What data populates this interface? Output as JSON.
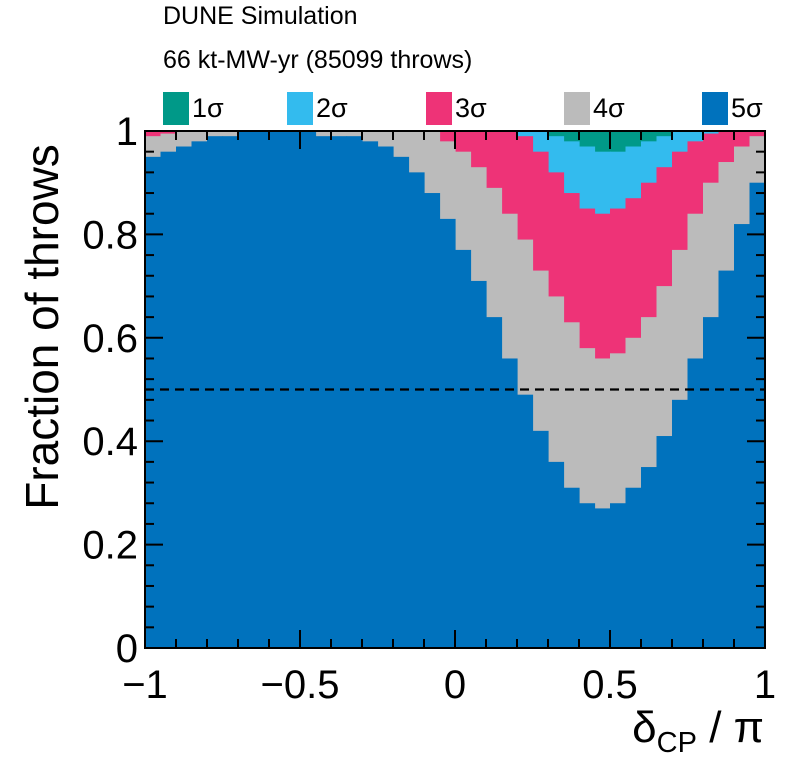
{
  "chart_data": {
    "type": "area",
    "title": "DUNE Simulation",
    "subtitle": "66 kt-MW-yr (85099 throws)",
    "xlabel": "δCP / π",
    "xlabel_main": "δ",
    "xlabel_sub": "CP",
    "xlabel_tail": " / π",
    "ylabel": "Fraction of throws",
    "xlim": [
      -1,
      1
    ],
    "ylim": [
      0,
      1
    ],
    "x_ticks": [
      "−1",
      "−0.5",
      "0",
      "0.5",
      "1"
    ],
    "x_tick_values": [
      -1,
      -0.5,
      0,
      0.5,
      1
    ],
    "y_ticks": [
      "0",
      "0.2",
      "0.4",
      "0.6",
      "0.8",
      "1"
    ],
    "y_tick_values": [
      0,
      0.2,
      0.4,
      0.6,
      0.8,
      1
    ],
    "reference_line": {
      "y": 0.5,
      "style": "dashed"
    },
    "legend_position": "top",
    "stacking": "cumulative from top",
    "bins": {
      "x_low": [
        -1.0,
        -0.95,
        -0.9,
        -0.85,
        -0.8,
        -0.75,
        -0.7,
        -0.65,
        -0.6,
        -0.55,
        -0.5,
        -0.45,
        -0.4,
        -0.35,
        -0.3,
        -0.25,
        -0.2,
        -0.15,
        -0.1,
        -0.05,
        0.0,
        0.05,
        0.1,
        0.15,
        0.2,
        0.25,
        0.3,
        0.35,
        0.4,
        0.45,
        0.5,
        0.55,
        0.6,
        0.65,
        0.7,
        0.75,
        0.8,
        0.85,
        0.9,
        0.95
      ],
      "width": 0.05
    },
    "series": [
      {
        "name": "5σ",
        "color": "#0072bd",
        "upper_bound": [
          0.95,
          0.96,
          0.97,
          0.98,
          0.99,
          0.99,
          1.0,
          1.0,
          1.0,
          1.0,
          1.0,
          0.99,
          0.99,
          0.99,
          0.98,
          0.97,
          0.95,
          0.92,
          0.88,
          0.83,
          0.77,
          0.71,
          0.64,
          0.56,
          0.49,
          0.42,
          0.36,
          0.31,
          0.28,
          0.27,
          0.28,
          0.31,
          0.35,
          0.41,
          0.48,
          0.56,
          0.64,
          0.73,
          0.82,
          0.9
        ]
      },
      {
        "name": "4σ",
        "color": "#bbbbbb",
        "upper_bound": [
          0.99,
          0.995,
          1.0,
          1.0,
          1.0,
          1.0,
          1.0,
          1.0,
          1.0,
          1.0,
          1.0,
          1.0,
          1.0,
          1.0,
          1.0,
          1.0,
          1.0,
          1.0,
          1.0,
          0.98,
          0.96,
          0.93,
          0.89,
          0.84,
          0.79,
          0.73,
          0.68,
          0.63,
          0.58,
          0.56,
          0.57,
          0.6,
          0.64,
          0.7,
          0.77,
          0.84,
          0.9,
          0.94,
          0.97,
          0.99
        ]
      },
      {
        "name": "3σ",
        "color": "#ee3377",
        "upper_bound": [
          1.0,
          1.0,
          1.0,
          1.0,
          1.0,
          1.0,
          1.0,
          1.0,
          1.0,
          1.0,
          1.0,
          1.0,
          1.0,
          1.0,
          1.0,
          1.0,
          1.0,
          1.0,
          1.0,
          1.0,
          1.0,
          1.0,
          1.0,
          1.0,
          0.99,
          0.96,
          0.92,
          0.88,
          0.85,
          0.84,
          0.85,
          0.87,
          0.9,
          0.93,
          0.96,
          0.98,
          0.995,
          1.0,
          1.0,
          1.0
        ]
      },
      {
        "name": "2σ",
        "color": "#33bbee",
        "upper_bound": [
          1.0,
          1.0,
          1.0,
          1.0,
          1.0,
          1.0,
          1.0,
          1.0,
          1.0,
          1.0,
          1.0,
          1.0,
          1.0,
          1.0,
          1.0,
          1.0,
          1.0,
          1.0,
          1.0,
          1.0,
          1.0,
          1.0,
          1.0,
          1.0,
          1.0,
          1.0,
          0.99,
          0.98,
          0.97,
          0.96,
          0.96,
          0.97,
          0.98,
          0.99,
          1.0,
          1.0,
          1.0,
          1.0,
          1.0,
          1.0
        ]
      },
      {
        "name": "1σ",
        "color": "#009988",
        "upper_bound": [
          1.0,
          1.0,
          1.0,
          1.0,
          1.0,
          1.0,
          1.0,
          1.0,
          1.0,
          1.0,
          1.0,
          1.0,
          1.0,
          1.0,
          1.0,
          1.0,
          1.0,
          1.0,
          1.0,
          1.0,
          1.0,
          1.0,
          1.0,
          1.0,
          1.0,
          1.0,
          1.0,
          1.0,
          1.0,
          1.0,
          1.0,
          1.0,
          1.0,
          1.0,
          1.0,
          1.0,
          1.0,
          1.0,
          1.0,
          1.0
        ]
      }
    ],
    "legend_order": [
      "1σ",
      "2σ",
      "3σ",
      "4σ",
      "5σ"
    ]
  }
}
